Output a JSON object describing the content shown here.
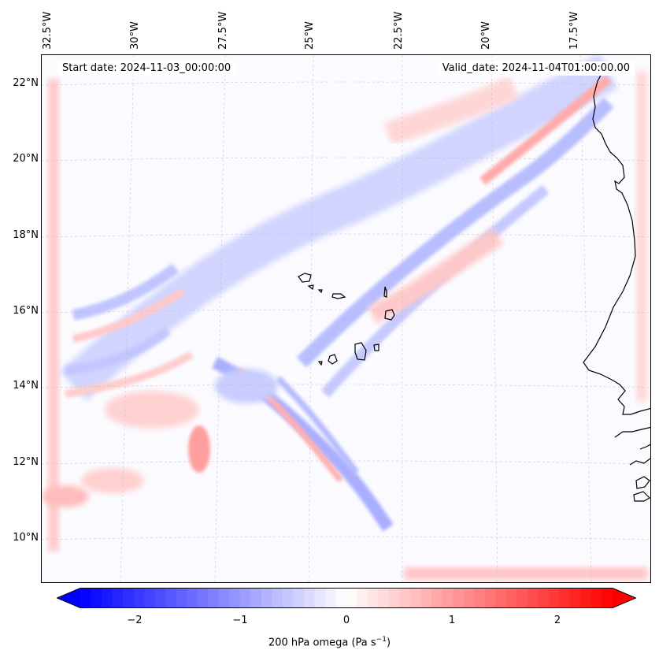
{
  "map": {
    "start_date": "Start date: 2024-11-03_00:00:00",
    "valid_date": "Valid_date: 2024-11-04T01:00:00.00",
    "lat_labels": [
      "22°N",
      "20°N",
      "18°N",
      "16°N",
      "14°N",
      "12°N",
      "10°N"
    ],
    "lon_labels": [
      "32.5°W",
      "30°W",
      "27.5°W",
      "25°W",
      "22.5°W",
      "20°W",
      "17.5°W"
    ],
    "extent": {
      "lon_min": -32.6,
      "lon_max": -15.2,
      "lat_min": 8.8,
      "lat_max": 22.8
    }
  },
  "colorbar": {
    "label_text": "200 hPa omega (Pa s",
    "label_sup": "−1",
    "label_close": ")",
    "ticks": [
      "−2",
      "−1",
      "0",
      "1",
      "2"
    ],
    "tick_values": [
      -2,
      -1,
      0,
      1,
      2
    ],
    "range": [
      -2.5,
      2.5
    ],
    "colors": {
      "neg": "#0000ff",
      "mid": "#ffffff",
      "pos": "#ff0000"
    }
  }
}
